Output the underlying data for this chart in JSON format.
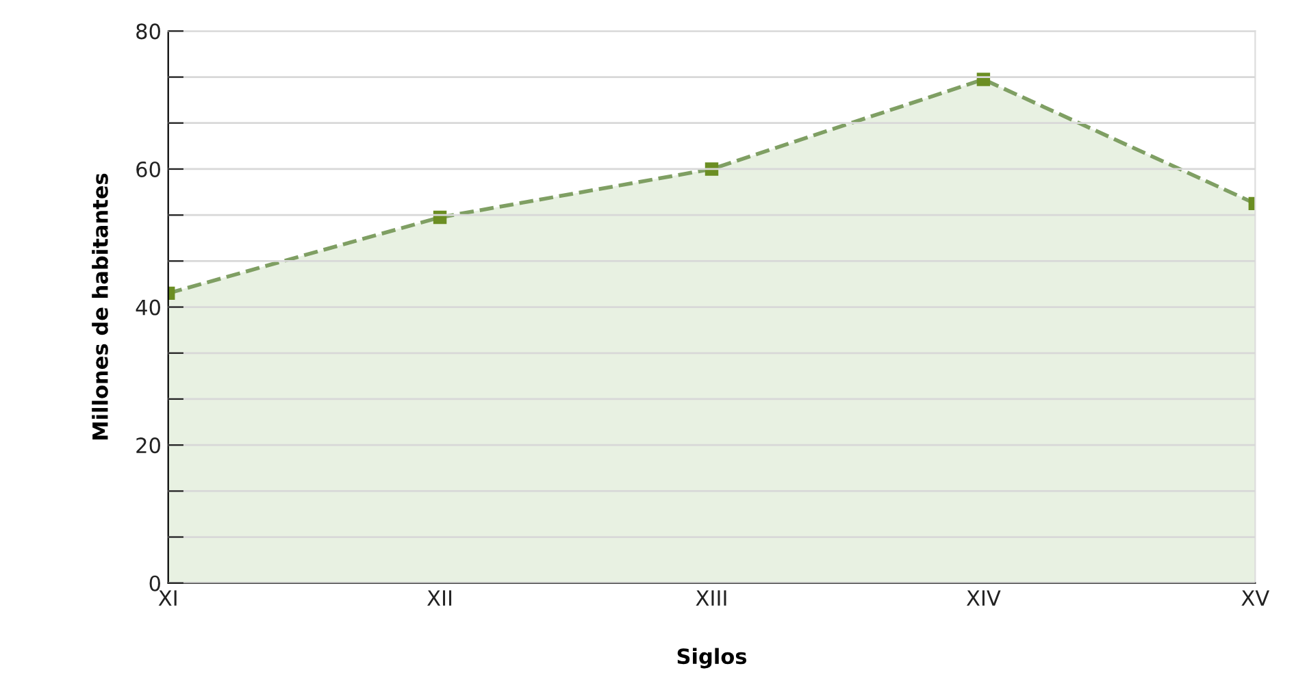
{
  "chart_data": {
    "type": "area",
    "xlabel": "Siglos",
    "ylabel": "Millones de habitantes",
    "categories": [
      "XI",
      "XII",
      "XIII",
      "XIV",
      "XV"
    ],
    "series": [
      {
        "color": "#6b8e23",
        "values": [
          42,
          53,
          60,
          73,
          55
        ]
      }
    ],
    "ylim": [
      0,
      80
    ],
    "yticks": [
      0,
      {
        "value": 6.67,
        "label": null
      },
      {
        "value": 13.33,
        "label": null
      },
      20,
      {
        "value": 26.67,
        "label": null
      },
      {
        "value": 33.33,
        "label": null
      },
      40,
      {
        "value": 46.67,
        "label": null
      },
      {
        "value": 53.33,
        "label": null
      },
      60,
      {
        "value": 66.67,
        "label": null
      },
      {
        "value": 73.33,
        "label": null
      },
      80
    ],
    "grid": "y",
    "marker": "square",
    "line_style": "dashed"
  }
}
